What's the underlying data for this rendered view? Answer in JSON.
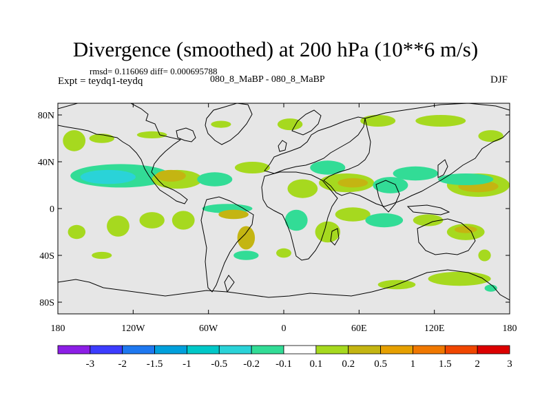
{
  "title": "Divergence (smoothed) at 200 hPa (10**6 m/s)",
  "stats_text": "rmsd= 0.116069 diff= 0.000695788",
  "experiment_label": "Expt = teydq1-teydq",
  "case_label": "080_8_MaBP - 080_8_MaBP",
  "season": "DJF",
  "colors": {
    "background": "#e6e6e6",
    "positive_low": "#a6d91f",
    "positive_mid": "#c4b512",
    "negative_low": "#32dc96",
    "negative_mid": "#2ad3d8",
    "coastline": "#000000"
  },
  "chart_data": {
    "type": "heatmap",
    "title": "Divergence (smoothed) at 200 hPa (10**6 m/s)",
    "projection": "cylindrical equidistant",
    "x_range": [
      -180,
      180
    ],
    "y_range": [
      -90,
      90
    ],
    "x_ticks": [
      {
        "value": -180,
        "label": "180"
      },
      {
        "value": -120,
        "label": "120W"
      },
      {
        "value": -60,
        "label": "60W"
      },
      {
        "value": 0,
        "label": "0"
      },
      {
        "value": 60,
        "label": "60E"
      },
      {
        "value": 120,
        "label": "120E"
      },
      {
        "value": 180,
        "label": "180"
      }
    ],
    "y_ticks": [
      {
        "value": 80,
        "label": "80N"
      },
      {
        "value": 40,
        "label": "40N"
      },
      {
        "value": 0,
        "label": "0"
      },
      {
        "value": -40,
        "label": "40S"
      },
      {
        "value": -80,
        "label": "80S"
      }
    ],
    "colorbar": {
      "boundaries": [
        "-3",
        "-2",
        "-1.5",
        "-1",
        "-0.5",
        "-0.2",
        "-0.1",
        "0.1",
        "0.2",
        "0.5",
        "1",
        "1.5",
        "2",
        "3"
      ],
      "colors": [
        "#8c1ee6",
        "#3c3cff",
        "#1e78f0",
        "#00a0dc",
        "#00c8c8",
        "#2ad3d8",
        "#32dc96",
        "#ffffff",
        "#a6d91f",
        "#c4b512",
        "#e6a000",
        "#f07800",
        "#f04600",
        "#dc0000"
      ]
    },
    "anomaly_patches": [
      {
        "lon": -167,
        "lat": 58,
        "rx": 9,
        "ry": 9,
        "level": "pos1"
      },
      {
        "lon": -145,
        "lat": 60,
        "rx": 10,
        "ry": 4,
        "level": "pos1"
      },
      {
        "lon": -105,
        "lat": 63,
        "rx": 12,
        "ry": 3,
        "level": "pos1"
      },
      {
        "lon": -50,
        "lat": 72,
        "rx": 8,
        "ry": 3,
        "level": "pos1"
      },
      {
        "lon": 5,
        "lat": 72,
        "rx": 10,
        "ry": 5,
        "level": "pos1"
      },
      {
        "lon": 75,
        "lat": 75,
        "rx": 14,
        "ry": 5,
        "level": "pos1"
      },
      {
        "lon": 125,
        "lat": 75,
        "rx": 20,
        "ry": 5,
        "level": "pos1"
      },
      {
        "lon": 165,
        "lat": 62,
        "rx": 10,
        "ry": 5,
        "level": "pos1"
      },
      {
        "lon": -130,
        "lat": 28,
        "rx": 40,
        "ry": 10,
        "level": "neg1"
      },
      {
        "lon": -140,
        "lat": 27,
        "rx": 22,
        "ry": 6,
        "level": "neg2"
      },
      {
        "lon": -85,
        "lat": 25,
        "rx": 20,
        "ry": 8,
        "level": "pos1"
      },
      {
        "lon": -90,
        "lat": 28,
        "rx": 12,
        "ry": 5,
        "level": "pos2"
      },
      {
        "lon": -55,
        "lat": 25,
        "rx": 14,
        "ry": 6,
        "level": "neg1"
      },
      {
        "lon": -25,
        "lat": 35,
        "rx": 14,
        "ry": 5,
        "level": "pos1"
      },
      {
        "lon": 15,
        "lat": 17,
        "rx": 12,
        "ry": 8,
        "level": "pos1"
      },
      {
        "lon": 35,
        "lat": 35,
        "rx": 14,
        "ry": 6,
        "level": "neg1"
      },
      {
        "lon": 50,
        "lat": 22,
        "rx": 22,
        "ry": 8,
        "level": "pos1"
      },
      {
        "lon": 55,
        "lat": 22,
        "rx": 12,
        "ry": 4,
        "level": "pos2"
      },
      {
        "lon": 85,
        "lat": 20,
        "rx": 14,
        "ry": 7,
        "level": "neg1"
      },
      {
        "lon": 105,
        "lat": 30,
        "rx": 18,
        "ry": 6,
        "level": "neg1"
      },
      {
        "lon": 155,
        "lat": 20,
        "rx": 25,
        "ry": 10,
        "level": "pos1"
      },
      {
        "lon": 155,
        "lat": 19,
        "rx": 16,
        "ry": 5,
        "level": "pos2"
      },
      {
        "lon": 145,
        "lat": 25,
        "rx": 22,
        "ry": 5,
        "level": "neg1"
      },
      {
        "lon": -165,
        "lat": -20,
        "rx": 7,
        "ry": 6,
        "level": "pos1"
      },
      {
        "lon": -132,
        "lat": -15,
        "rx": 9,
        "ry": 9,
        "level": "pos1"
      },
      {
        "lon": -105,
        "lat": -10,
        "rx": 10,
        "ry": 7,
        "level": "pos1"
      },
      {
        "lon": -80,
        "lat": -10,
        "rx": 9,
        "ry": 8,
        "level": "pos1"
      },
      {
        "lon": -45,
        "lat": 0,
        "rx": 20,
        "ry": 4,
        "level": "neg1"
      },
      {
        "lon": -40,
        "lat": -5,
        "rx": 12,
        "ry": 4,
        "level": "pos2"
      },
      {
        "lon": -30,
        "lat": -25,
        "rx": 7,
        "ry": 10,
        "level": "pos2"
      },
      {
        "lon": -30,
        "lat": -40,
        "rx": 10,
        "ry": 4,
        "level": "neg1"
      },
      {
        "lon": 10,
        "lat": -10,
        "rx": 9,
        "ry": 9,
        "level": "neg1"
      },
      {
        "lon": 0,
        "lat": -38,
        "rx": 6,
        "ry": 4,
        "level": "pos1"
      },
      {
        "lon": 35,
        "lat": -20,
        "rx": 10,
        "ry": 9,
        "level": "pos1"
      },
      {
        "lon": 55,
        "lat": -5,
        "rx": 14,
        "ry": 6,
        "level": "pos1"
      },
      {
        "lon": 80,
        "lat": -10,
        "rx": 15,
        "ry": 6,
        "level": "neg1"
      },
      {
        "lon": 115,
        "lat": -10,
        "rx": 12,
        "ry": 5,
        "level": "pos1"
      },
      {
        "lon": 145,
        "lat": -20,
        "rx": 15,
        "ry": 7,
        "level": "pos1"
      },
      {
        "lon": 145,
        "lat": -18,
        "rx": 9,
        "ry": 3,
        "level": "pos2"
      },
      {
        "lon": 160,
        "lat": -40,
        "rx": 5,
        "ry": 5,
        "level": "pos1"
      },
      {
        "lon": 90,
        "lat": -65,
        "rx": 15,
        "ry": 4,
        "level": "pos1"
      },
      {
        "lon": 140,
        "lat": -60,
        "rx": 25,
        "ry": 6,
        "level": "pos1"
      },
      {
        "lon": 165,
        "lat": -68,
        "rx": 5,
        "ry": 3,
        "level": "neg1"
      },
      {
        "lon": -145,
        "lat": -40,
        "rx": 8,
        "ry": 3,
        "level": "pos1"
      }
    ]
  }
}
